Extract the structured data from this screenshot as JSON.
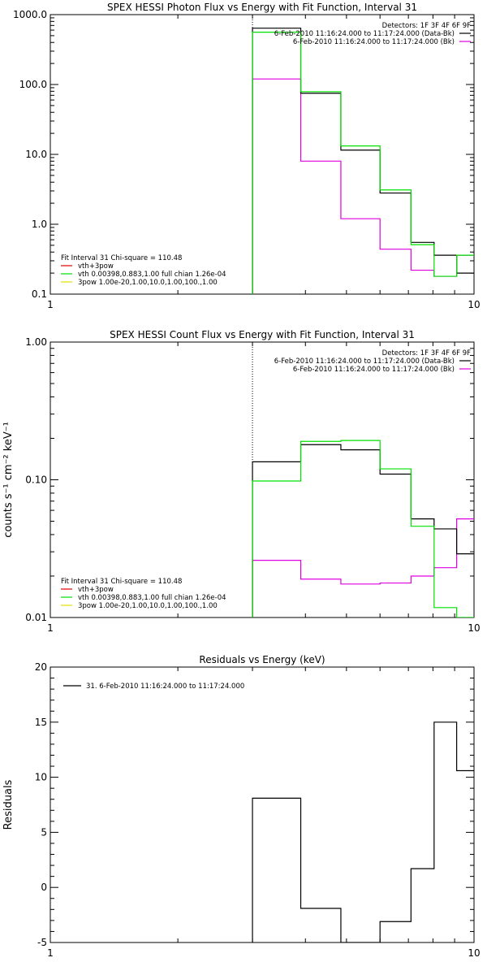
{
  "colors": {
    "data_bk": "#000000",
    "bk": "#e000e0",
    "model": "#00e000",
    "comp_total": "#e00000",
    "comp_3pow": "#e0e000",
    "axis": "#000000"
  },
  "chart_data": [
    {
      "type": "line",
      "title": "SPEX HESSI Photon Flux vs Energy with Fit Function, Interval 31",
      "ylabel": "",
      "xscale": "log",
      "yscale": "log",
      "xlim": [
        1,
        10
      ],
      "ylim": [
        0.1,
        1000
      ],
      "xticks": [
        {
          "value": 1,
          "label": "1"
        },
        {
          "value": 10,
          "label": "10"
        }
      ],
      "yticks": [
        {
          "value": 0.1,
          "label": "0.1"
        },
        {
          "value": 1,
          "label": "1.0"
        },
        {
          "value": 10,
          "label": "10.0"
        },
        {
          "value": 100,
          "label": "100.0"
        },
        {
          "value": 1000,
          "label": "1000.0"
        }
      ],
      "vline": 3.0,
      "edges": [
        3.0,
        3.9,
        4.85,
        6.0,
        7.1,
        8.05,
        9.1,
        10.0
      ],
      "legend_topright": [
        {
          "text": "Detectors: 1F 3F 4F 6F 9F",
          "series": null
        },
        {
          "text": "6-Feb-2010 11:16:24.000 to 11:17:24.000 (Data-Bk)",
          "series": "data_bk"
        },
        {
          "text": "6-Feb-2010 11:16:24.000 to 11:17:24.000 (Bk)",
          "series": "bk"
        }
      ],
      "legend_bottomleft": [
        {
          "text": "Fit Interval 31    Chi-square = 110.48",
          "series": null
        },
        {
          "text": "vth+3pow",
          "series": "comp_total"
        },
        {
          "text": "vth 0.00398,0.883,1.00  full chian 1.26e-04",
          "series": "model"
        },
        {
          "text": "3pow 1.00e-20,1.00,10.0,1.00,100.,1.00",
          "series": "comp_3pow"
        }
      ],
      "series": [
        {
          "key": "data_bk",
          "values": [
            640,
            75,
            11.5,
            2.8,
            0.55,
            0.36,
            0.2
          ]
        },
        {
          "key": "model",
          "values": [
            560,
            79,
            13.2,
            3.1,
            0.51,
            0.18,
            0.36
          ]
        },
        {
          "key": "bk",
          "values": [
            120,
            8.0,
            1.2,
            0.44,
            0.22,
            0.18,
            0.36
          ]
        }
      ]
    },
    {
      "type": "line",
      "title": "SPEX HESSI Count Flux vs Energy with Fit Function, Interval 31",
      "ylabel": "counts s⁻¹ cm⁻² keV⁻¹",
      "xscale": "log",
      "yscale": "log",
      "xlim": [
        1,
        10
      ],
      "ylim": [
        0.01,
        1.0
      ],
      "xticks": [
        {
          "value": 1,
          "label": "1"
        },
        {
          "value": 10,
          "label": "10"
        }
      ],
      "yticks": [
        {
          "value": 0.01,
          "label": "0.01"
        },
        {
          "value": 0.1,
          "label": "0.10"
        },
        {
          "value": 1.0,
          "label": "1.00"
        }
      ],
      "vline": 3.0,
      "edges": [
        3.0,
        3.9,
        4.85,
        6.0,
        7.1,
        8.05,
        9.1,
        10.0
      ],
      "legend_topright": [
        {
          "text": "Detectors: 1F 3F 4F 6F 9F",
          "series": null
        },
        {
          "text": "6-Feb-2010 11:16:24.000 to 11:17:24.000 (Data-Bk)",
          "series": "data_bk"
        },
        {
          "text": "6-Feb-2010 11:16:24.000 to 11:17:24.000 (Bk)",
          "series": "bk"
        }
      ],
      "legend_bottomleft": [
        {
          "text": "Fit Interval 31    Chi-square = 110.48",
          "series": null
        },
        {
          "text": "vth+3pow",
          "series": "comp_total"
        },
        {
          "text": "vth 0.00398,0.883,1.00  full chian 1.26e-04",
          "series": "model"
        },
        {
          "text": "3pow 1.00e-20,1.00,10.0,1.00,100.,1.00",
          "series": "comp_3pow"
        }
      ],
      "series": [
        {
          "key": "data_bk",
          "values": [
            0.135,
            0.18,
            0.165,
            0.11,
            0.052,
            0.044,
            0.029
          ]
        },
        {
          "key": "model",
          "values": [
            0.098,
            0.19,
            0.193,
            0.12,
            0.046,
            0.0118,
            0.0095
          ]
        },
        {
          "key": "bk",
          "values": [
            0.026,
            0.019,
            0.0175,
            0.0178,
            0.02,
            0.023,
            0.052
          ]
        }
      ]
    },
    {
      "type": "line",
      "title": "Residuals vs Energy (keV)",
      "ylabel": "Residuals",
      "xscale": "log",
      "yscale": "linear",
      "xlim": [
        1,
        10
      ],
      "ylim": [
        -5,
        20
      ],
      "xticks": [
        {
          "value": 1,
          "label": "1"
        },
        {
          "value": 10,
          "label": "10"
        }
      ],
      "yticks": [
        {
          "value": -5,
          "label": "-5"
        },
        {
          "value": 0,
          "label": "0"
        },
        {
          "value": 5,
          "label": "5"
        },
        {
          "value": 10,
          "label": "10"
        },
        {
          "value": 15,
          "label": "15"
        },
        {
          "value": 20,
          "label": "20"
        }
      ],
      "vline": null,
      "edges": [
        3.0,
        3.9,
        4.85,
        6.0,
        7.1,
        8.05,
        9.1,
        10.0
      ],
      "legend_topleft": [
        {
          "text": "31.  6-Feb-2010 11:16:24.000 to 11:17:24.000",
          "series": "data_bk"
        }
      ],
      "series": [
        {
          "key": "data_bk",
          "values": [
            8.1,
            -1.9,
            -5.1,
            -3.1,
            1.7,
            15.0,
            10.6
          ]
        }
      ]
    }
  ]
}
